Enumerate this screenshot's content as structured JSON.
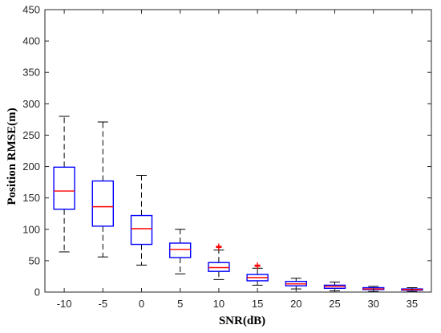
{
  "chart_data": {
    "type": "box",
    "xlabel": "SNR(dB)",
    "ylabel": "Position RMSE(m)",
    "ylim": [
      0,
      450
    ],
    "yticks": [
      0,
      50,
      100,
      150,
      200,
      250,
      300,
      350,
      400,
      450
    ],
    "grid": false,
    "legend": "none",
    "categories": [
      "-10",
      "-5",
      "0",
      "5",
      "10",
      "15",
      "20",
      "25",
      "30",
      "35"
    ],
    "boxes": [
      {
        "category": "-10",
        "whisker_low": 64,
        "q1": 132,
        "median": 161,
        "q3": 199,
        "whisker_high": 280,
        "outliers": []
      },
      {
        "category": "-5",
        "whisker_low": 56,
        "q1": 105,
        "median": 136,
        "q3": 177,
        "whisker_high": 271,
        "outliers": []
      },
      {
        "category": "0",
        "whisker_low": 43,
        "q1": 76,
        "median": 101,
        "q3": 122,
        "whisker_high": 186,
        "outliers": []
      },
      {
        "category": "5",
        "whisker_low": 29,
        "q1": 55,
        "median": 68,
        "q3": 78,
        "whisker_high": 100,
        "outliers": []
      },
      {
        "category": "10",
        "whisker_low": 20,
        "q1": 33,
        "median": 39,
        "q3": 47,
        "whisker_high": 67,
        "outliers": [
          71,
          72,
          73
        ]
      },
      {
        "category": "15",
        "whisker_low": 11,
        "q1": 18,
        "median": 23,
        "q3": 28,
        "whisker_high": 38,
        "outliers": [
          41,
          42,
          43
        ]
      },
      {
        "category": "20",
        "whisker_low": 5,
        "q1": 10,
        "median": 13,
        "q3": 17,
        "whisker_high": 22,
        "outliers": []
      },
      {
        "category": "25",
        "whisker_low": 2,
        "q1": 6,
        "median": 9,
        "q3": 11,
        "whisker_high": 16,
        "outliers": []
      },
      {
        "category": "30",
        "whisker_low": 1,
        "q1": 4,
        "median": 5,
        "q3": 7,
        "whisker_high": 9,
        "outliers": []
      },
      {
        "category": "35",
        "whisker_low": 1,
        "q1": 3,
        "median": 4,
        "q3": 5,
        "whisker_high": 7,
        "outliers": []
      }
    ],
    "colors": {
      "box": "#0000ff",
      "median": "#ff0000",
      "whisker": "#000000",
      "outlier": "#ff0000",
      "axis": "#262626"
    }
  }
}
